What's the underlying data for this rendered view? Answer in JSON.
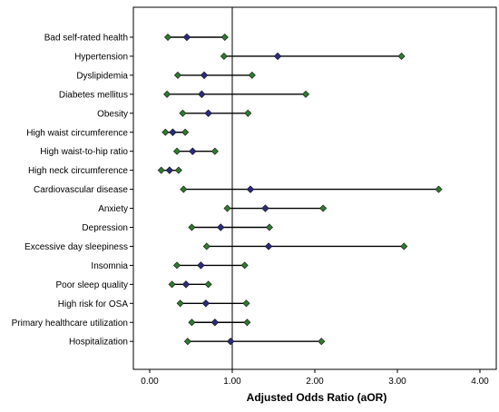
{
  "chart_data": {
    "type": "forest",
    "title": "",
    "xlabel": "Adjusted Odds Ratio (aOR)",
    "ylabel": "",
    "xlim": [
      0,
      4.2
    ],
    "x_ticks": [
      "0.00",
      "1.00",
      "2.00",
      "3.00",
      "4.00"
    ],
    "x_tick_values": [
      0,
      1,
      2,
      3,
      4
    ],
    "reference_line": 1.0,
    "grid": false,
    "categories": [
      "Bad self-rated health",
      "Hypertension",
      "Dyslipidemia",
      "Diabetes mellitus",
      "Obesity",
      "High waist circumference",
      "High waist-to-hip ratio",
      "High neck circumference",
      "Cardiovascular disease",
      "Anxiety",
      "Depression",
      "Excessive day sleepiness",
      "Insomnia",
      "Poor sleep quality",
      "High risk for OSA",
      "Primary healthcare utilization",
      "Hospitalization"
    ],
    "estimates": [
      0.45,
      1.55,
      0.66,
      0.63,
      0.71,
      0.28,
      0.52,
      0.24,
      1.22,
      1.4,
      0.86,
      1.44,
      0.62,
      0.44,
      0.68,
      0.79,
      0.98
    ],
    "lower": [
      0.22,
      0.9,
      0.34,
      0.21,
      0.4,
      0.19,
      0.33,
      0.14,
      0.41,
      0.94,
      0.51,
      0.69,
      0.33,
      0.27,
      0.37,
      0.51,
      0.46
    ],
    "upper": [
      0.91,
      3.05,
      1.24,
      1.89,
      1.19,
      0.43,
      0.79,
      0.35,
      3.5,
      2.1,
      1.45,
      3.08,
      1.15,
      0.71,
      1.17,
      1.18,
      2.08
    ],
    "colors": {
      "estimate_marker": "#2b2b7a",
      "ci_marker": "#2f7a2f",
      "line": "#000000"
    }
  }
}
